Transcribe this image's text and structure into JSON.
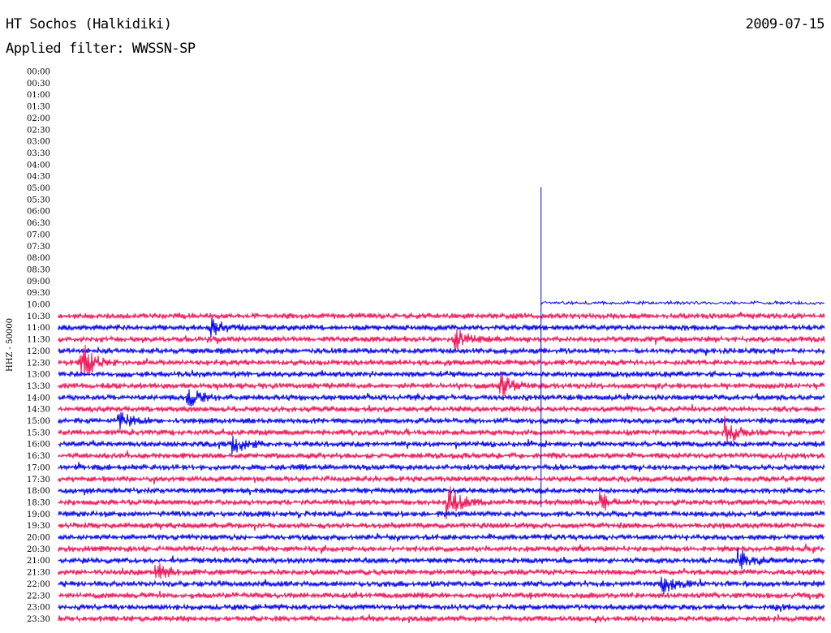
{
  "header": {
    "title": "HT Sochos (Halkidiki)",
    "date": "2009-07-15",
    "filter": "Applied filter: WWSSN-SP"
  },
  "chart_data": {
    "type": "line",
    "title": "HT Sochos (Halkidiki)",
    "subtitle": "Applied filter: WWSSN-SP",
    "ylabel": "HHZ - 50000",
    "tick_labels": [
      "00:00",
      "00:30",
      "01:00",
      "01:30",
      "02:00",
      "02:30",
      "03:00",
      "03:30",
      "04:00",
      "04:30",
      "05:00",
      "05:30",
      "06:00",
      "06:30",
      "07:00",
      "07:30",
      "08:00",
      "08:30",
      "09:00",
      "09:30",
      "10:00",
      "10:30",
      "11:00",
      "11:30",
      "12:00",
      "12:30",
      "13:00",
      "13:30",
      "14:00",
      "14:30",
      "15:00",
      "15:30",
      "16:00",
      "16:30",
      "17:00",
      "17:30",
      "18:00",
      "18:30",
      "19:00",
      "19:30",
      "20:00",
      "20:30",
      "21:00",
      "21:30",
      "22:00",
      "22:30",
      "23:00",
      "23:30"
    ],
    "trace_colors": [
      "#0000ee",
      "#ee1155"
    ],
    "data_start_row": "10:00",
    "data_start_fraction": 0.63,
    "spike_time": "05:00",
    "events": [
      {
        "row": "12:30",
        "at": 0.03,
        "amp": 3.2
      },
      {
        "row": "11:00",
        "at": 0.2,
        "amp": 1.2
      },
      {
        "row": "11:30",
        "at": 0.52,
        "amp": 1.5
      },
      {
        "row": "13:30",
        "at": 0.58,
        "amp": 1.6
      },
      {
        "row": "14:00",
        "at": 0.17,
        "amp": 1.3
      },
      {
        "row": "15:00",
        "at": 0.08,
        "amp": 1.4
      },
      {
        "row": "15:30",
        "at": 0.87,
        "amp": 2.6
      },
      {
        "row": "16:00",
        "at": 0.23,
        "amp": 1.3
      },
      {
        "row": "18:30",
        "at": 0.51,
        "amp": 2.4
      },
      {
        "row": "18:30",
        "at": 0.71,
        "amp": 1.3
      },
      {
        "row": "21:00",
        "at": 0.89,
        "amp": 1.5
      },
      {
        "row": "21:30",
        "at": 0.13,
        "amp": 1.2
      },
      {
        "row": "22:00",
        "at": 0.79,
        "amp": 1.4
      }
    ]
  }
}
